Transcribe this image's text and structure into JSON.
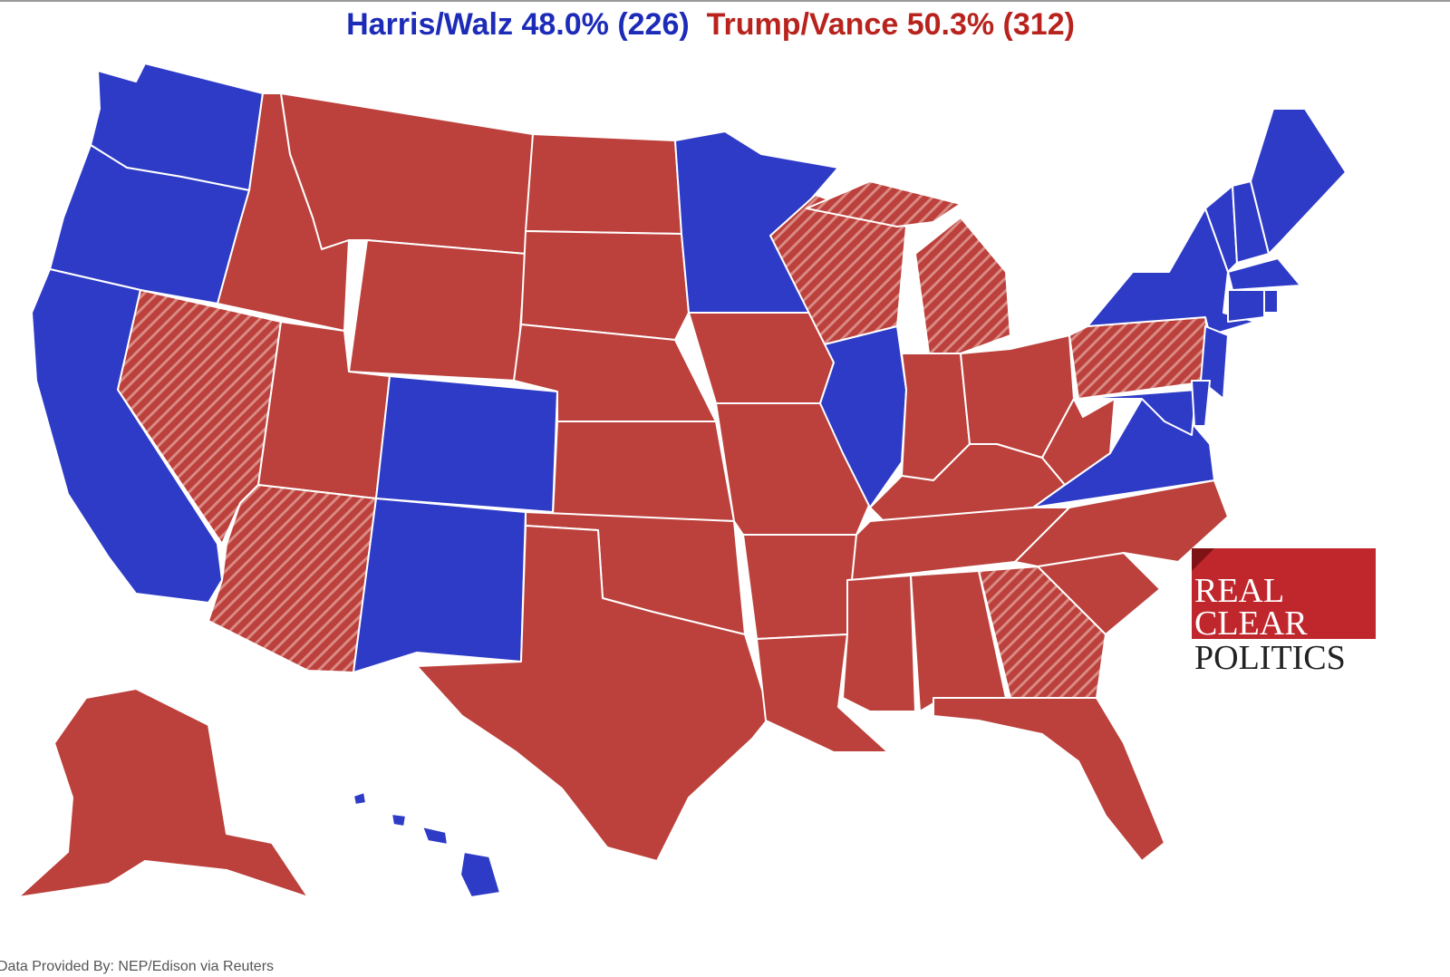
{
  "header": {
    "harris": {
      "name": "Harris/Walz",
      "share": "48.0%",
      "electoral": "(226)"
    },
    "trump": {
      "name": "Trump/Vance",
      "share": "50.3%",
      "electoral": "(312)"
    }
  },
  "logo": {
    "lines": [
      "REAL",
      "CLEAR",
      "POLITICS"
    ]
  },
  "footer": {
    "source": "Data Provided By: NEP/Edison via Reuters"
  }
}
